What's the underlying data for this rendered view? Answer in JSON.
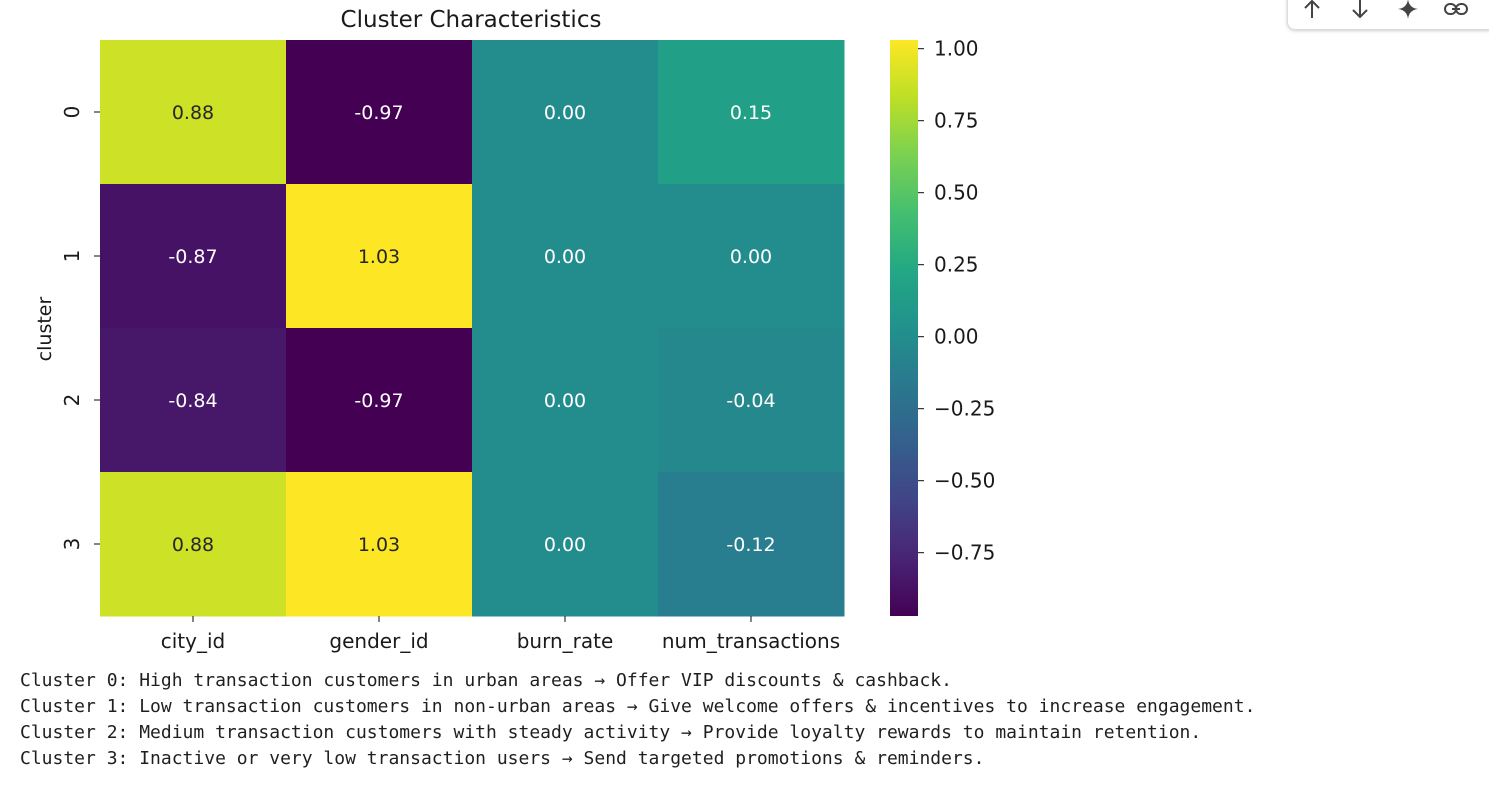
{
  "toolbar": {
    "icons": [
      "arrow-up-icon",
      "arrow-down-icon",
      "sparkle-icon",
      "link-icon"
    ]
  },
  "chart_data": {
    "type": "heatmap",
    "title": "Cluster Characteristics",
    "xlabel": "",
    "ylabel": "cluster",
    "columns": [
      "city_id",
      "gender_id",
      "burn_rate",
      "num_transactions"
    ],
    "rows": [
      "0",
      "1",
      "2",
      "3"
    ],
    "values": [
      [
        0.88,
        -0.97,
        0.0,
        0.15
      ],
      [
        -0.87,
        1.03,
        0.0,
        0.0
      ],
      [
        -0.84,
        -0.97,
        0.0,
        -0.04
      ],
      [
        0.88,
        1.03,
        0.0,
        -0.12
      ]
    ],
    "annotations": [
      [
        "0.88",
        "-0.97",
        "0.00",
        "0.15"
      ],
      [
        "-0.87",
        "1.03",
        "0.00",
        "0.00"
      ],
      [
        "-0.84",
        "-0.97",
        "0.00",
        "-0.04"
      ],
      [
        "0.88",
        "1.03",
        "0.00",
        "-0.12"
      ]
    ],
    "colormap": "viridis",
    "vmin": -0.97,
    "vmax": 1.03,
    "colorbar_ticks": [
      1.0,
      0.75,
      0.5,
      0.25,
      0.0,
      -0.25,
      -0.5,
      -0.75
    ],
    "colorbar_tick_labels": [
      "1.00",
      "0.75",
      "0.50",
      "0.25",
      "0.00",
      "−0.25",
      "−0.50",
      "−0.75"
    ],
    "grid": false
  },
  "output": {
    "lines": [
      "Cluster 0: High transaction customers in urban areas → Offer VIP discounts & cashback.",
      "Cluster 1: Low transaction customers in non-urban areas → Give welcome offers & incentives to increase engagement.",
      "Cluster 2: Medium transaction customers with steady activity → Provide loyalty rewards to maintain retention.",
      "Cluster 3: Inactive or very low transaction users → Send targeted promotions & reminders."
    ]
  }
}
